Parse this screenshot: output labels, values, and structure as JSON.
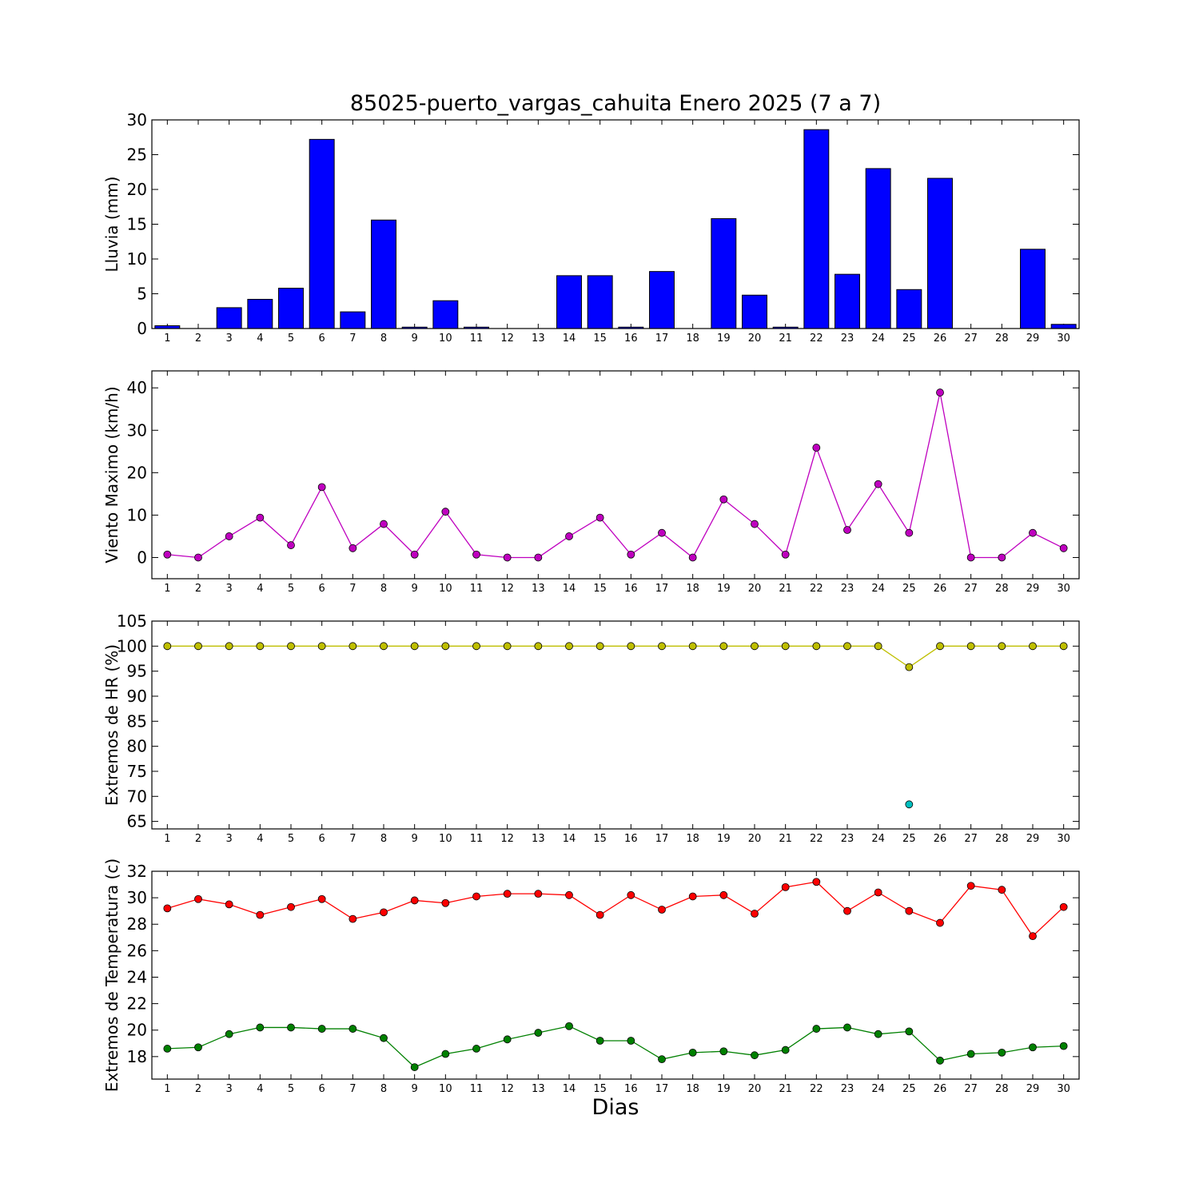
{
  "title": "85025-puerto_vargas_cahuita Enero 2025  (7 a 7)",
  "xlabel": "Dias",
  "colors": {
    "rain": "#0000ff",
    "wind": "#bf00bf",
    "hr_max": "#bfbf00",
    "hr_min": "#00bfbf",
    "t_max": "#ff0000",
    "t_min": "#008000"
  },
  "chart_data": [
    {
      "type": "bar",
      "ylabel": "Lluvia (mm)",
      "ylim": [
        0,
        30
      ],
      "yticks": [
        0,
        5,
        10,
        15,
        20,
        25,
        30
      ],
      "categories": [
        1,
        2,
        3,
        4,
        5,
        6,
        7,
        8,
        9,
        10,
        11,
        12,
        13,
        14,
        15,
        16,
        17,
        18,
        19,
        20,
        21,
        22,
        23,
        24,
        25,
        26,
        27,
        28,
        29,
        30
      ],
      "values": [
        0.4,
        0,
        3.0,
        4.2,
        5.8,
        27.2,
        2.4,
        15.6,
        0.2,
        4.0,
        0.2,
        0,
        0,
        7.6,
        7.6,
        0.2,
        8.2,
        0,
        15.8,
        4.8,
        0.2,
        28.6,
        7.8,
        23.0,
        5.6,
        21.6,
        0,
        0,
        11.4,
        0.6
      ]
    },
    {
      "type": "line",
      "ylabel": "Viento Maximo (km/h)",
      "ylim": [
        -5,
        44
      ],
      "yticks": [
        0,
        10,
        20,
        30,
        40
      ],
      "x": [
        1,
        2,
        3,
        4,
        5,
        6,
        7,
        8,
        9,
        10,
        11,
        12,
        13,
        14,
        15,
        16,
        17,
        18,
        19,
        20,
        21,
        22,
        23,
        24,
        25,
        26,
        27,
        28,
        29,
        30
      ],
      "series": [
        {
          "values": [
            0.7,
            0,
            5.0,
            9.4,
            2.9,
            16.6,
            2.2,
            7.9,
            0.7,
            10.8,
            0.7,
            0,
            0,
            5.0,
            9.4,
            0.7,
            5.8,
            0,
            13.7,
            7.9,
            0.7,
            25.9,
            6.5,
            17.3,
            5.8,
            38.9,
            0,
            0,
            5.8,
            2.2
          ]
        }
      ]
    },
    {
      "type": "line",
      "ylabel": "Extremos de HR (%)",
      "ylim": [
        63.5,
        105
      ],
      "yticks": [
        65,
        70,
        75,
        80,
        85,
        90,
        95,
        100,
        105
      ],
      "x": [
        1,
        2,
        3,
        4,
        5,
        6,
        7,
        8,
        9,
        10,
        11,
        12,
        13,
        14,
        15,
        16,
        17,
        18,
        19,
        20,
        21,
        22,
        23,
        24,
        25,
        26,
        27,
        28,
        29,
        30
      ],
      "series": [
        {
          "values": [
            100,
            100,
            100,
            100,
            100,
            100,
            100,
            100,
            100,
            100,
            100,
            100,
            100,
            100,
            100,
            100,
            100,
            100,
            100,
            100,
            100,
            100,
            100,
            100,
            95.8,
            100,
            100,
            100,
            100,
            100
          ]
        },
        {
          "points": [
            [
              25,
              68.4
            ]
          ]
        }
      ]
    },
    {
      "type": "line",
      "ylabel": "Extremos de Temperatura (c)",
      "ylim": [
        16.3,
        32
      ],
      "yticks": [
        18,
        20,
        22,
        24,
        26,
        28,
        30,
        32
      ],
      "x": [
        1,
        2,
        3,
        4,
        5,
        6,
        7,
        8,
        9,
        10,
        11,
        12,
        13,
        14,
        15,
        16,
        17,
        18,
        19,
        20,
        21,
        22,
        23,
        24,
        25,
        26,
        27,
        28,
        29,
        30
      ],
      "series": [
        {
          "values": [
            29.2,
            29.9,
            29.5,
            28.7,
            29.3,
            29.9,
            28.4,
            28.9,
            29.8,
            29.6,
            30.1,
            30.3,
            30.3,
            30.2,
            28.7,
            30.2,
            29.1,
            30.1,
            30.2,
            28.8,
            30.8,
            31.2,
            29.0,
            30.4,
            29.0,
            28.1,
            30.9,
            30.6,
            27.1,
            29.3
          ]
        },
        {
          "values": [
            18.6,
            18.7,
            19.7,
            20.2,
            20.2,
            20.1,
            20.1,
            19.4,
            17.2,
            18.2,
            18.6,
            19.3,
            19.8,
            20.3,
            19.2,
            19.2,
            17.8,
            18.3,
            18.4,
            18.1,
            18.5,
            20.1,
            20.2,
            19.7,
            19.9,
            17.7,
            18.2,
            18.3,
            18.7,
            18.8
          ]
        }
      ]
    }
  ]
}
